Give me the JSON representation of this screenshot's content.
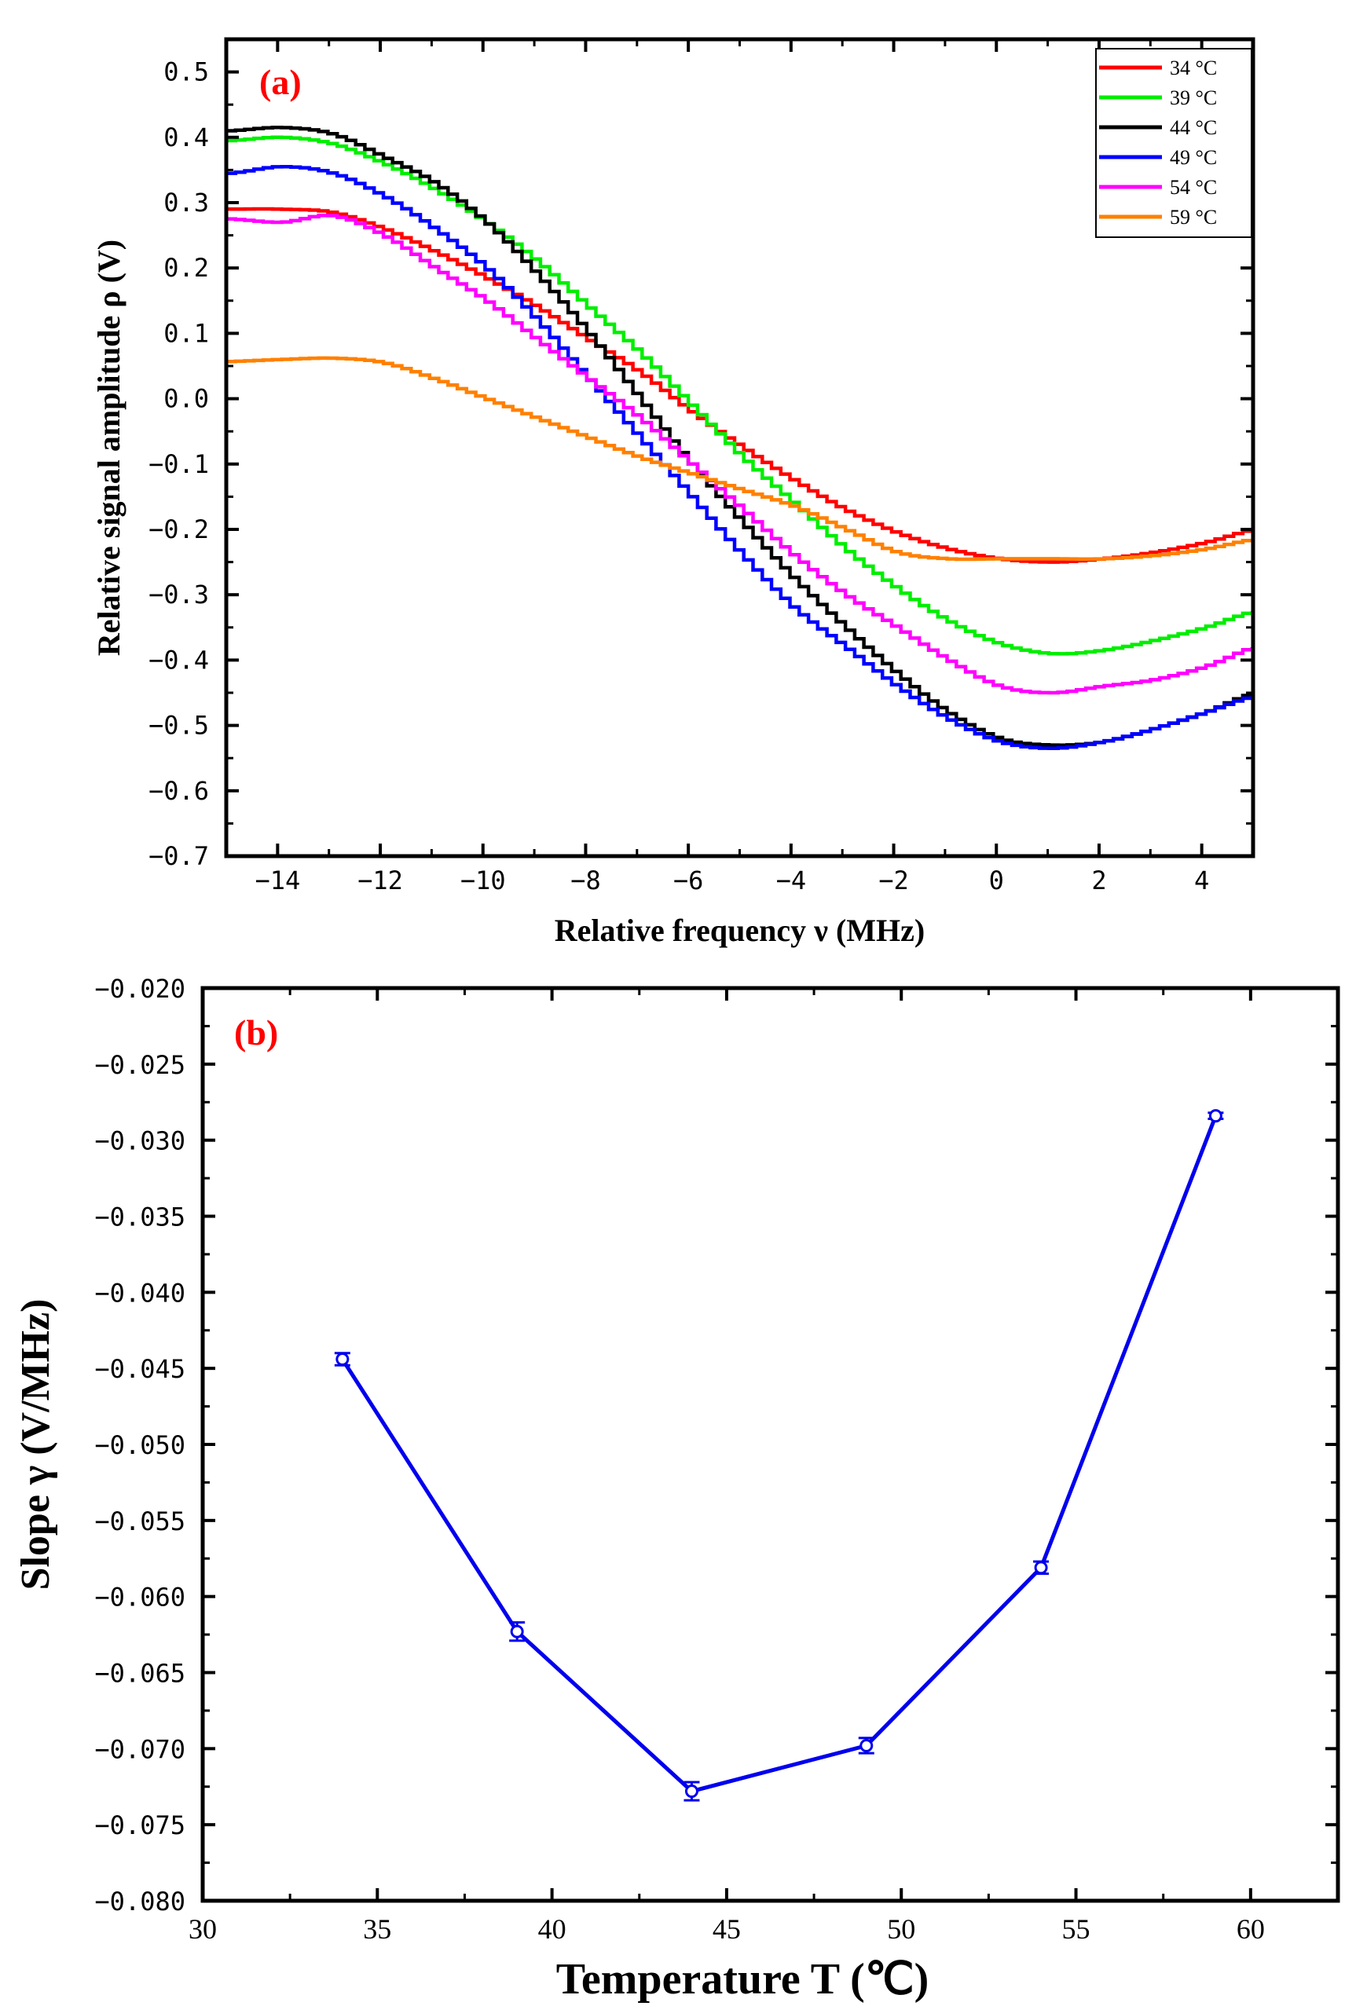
{
  "colors": {
    "panel_label": "#ff0000",
    "b_series": "#0000ee"
  },
  "chart_data": [
    {
      "type": "line",
      "panel_label": "(a)",
      "xlabel": "Relative frequency ν (MHz)",
      "ylabel": "Relative signal amplitude ρ (V)",
      "xlim": [
        -15,
        5
      ],
      "ylim": [
        -0.7,
        0.55
      ],
      "x_ticks": [
        -14,
        -12,
        -10,
        -8,
        -6,
        -4,
        -2,
        0,
        2,
        4
      ],
      "x_tick_labels": [
        "−14",
        "−12",
        "−10",
        "−8",
        "−6",
        "−4",
        "−2",
        "0",
        "2",
        "4"
      ],
      "y_ticks": [
        0.5,
        0.4,
        0.3,
        0.2,
        0.1,
        0.0,
        -0.1,
        -0.2,
        -0.3,
        -0.4,
        -0.5,
        -0.6,
        -0.7
      ],
      "y_tick_labels": [
        "0.5",
        "0.4",
        "0.3",
        "0.2",
        "0.1",
        "0.0",
        "−0.1",
        "−0.2",
        "−0.3",
        "−0.4",
        "−0.5",
        "−0.6",
        "−0.7"
      ],
      "grid": false,
      "legend": "top-right",
      "x": [
        -15,
        -14,
        -13,
        -12,
        -11,
        -10,
        -9,
        -8,
        -7,
        -6,
        -5,
        -4,
        -3,
        -2,
        -1,
        0,
        1,
        2,
        3,
        4,
        5
      ],
      "series": [
        {
          "name": "34 °C",
          "color": "#ff0000",
          "values": [
            0.29,
            0.29,
            0.285,
            0.26,
            0.225,
            0.185,
            0.14,
            0.09,
            0.04,
            -0.02,
            -0.075,
            -0.125,
            -0.17,
            -0.205,
            -0.23,
            -0.245,
            -0.25,
            -0.245,
            -0.235,
            -0.22,
            -0.2
          ]
        },
        {
          "name": "39 °C",
          "color": "#00ee00",
          "values": [
            0.395,
            0.4,
            0.39,
            0.36,
            0.32,
            0.27,
            0.21,
            0.14,
            0.07,
            -0.01,
            -0.09,
            -0.16,
            -0.23,
            -0.29,
            -0.34,
            -0.375,
            -0.39,
            -0.385,
            -0.37,
            -0.35,
            -0.325
          ]
        },
        {
          "name": "44 °C",
          "color": "#000000",
          "values": [
            0.41,
            0.415,
            0.405,
            0.37,
            0.33,
            0.27,
            0.19,
            0.1,
            0.0,
            -0.1,
            -0.19,
            -0.275,
            -0.35,
            -0.42,
            -0.48,
            -0.52,
            -0.53,
            -0.525,
            -0.505,
            -0.48,
            -0.45
          ]
        },
        {
          "name": "49 °C",
          "color": "#0000ff",
          "values": [
            0.345,
            0.355,
            0.345,
            0.31,
            0.26,
            0.2,
            0.12,
            0.03,
            -0.06,
            -0.15,
            -0.24,
            -0.32,
            -0.38,
            -0.44,
            -0.49,
            -0.525,
            -0.535,
            -0.525,
            -0.505,
            -0.48,
            -0.455
          ]
        },
        {
          "name": "54 °C",
          "color": "#ff00ff",
          "values": [
            0.275,
            0.27,
            0.28,
            0.25,
            0.2,
            0.15,
            0.09,
            0.03,
            -0.03,
            -0.1,
            -0.17,
            -0.24,
            -0.3,
            -0.35,
            -0.4,
            -0.44,
            -0.45,
            -0.44,
            -0.43,
            -0.41,
            -0.38
          ]
        },
        {
          "name": "59 °C",
          "color": "#ff8000",
          "values": [
            0.057,
            0.06,
            0.062,
            0.055,
            0.03,
            0.0,
            -0.03,
            -0.06,
            -0.09,
            -0.115,
            -0.14,
            -0.165,
            -0.2,
            -0.235,
            -0.245,
            -0.245,
            -0.245,
            -0.245,
            -0.24,
            -0.23,
            -0.215
          ]
        }
      ]
    },
    {
      "type": "line",
      "panel_label": "(b)",
      "xlabel": "Temperature T (℃)",
      "ylabel": "Slope γ (V/MHz)",
      "xlim": [
        30,
        62.5
      ],
      "ylim": [
        -0.08,
        -0.02
      ],
      "x_ticks": [
        30,
        35,
        40,
        45,
        50,
        55,
        60
      ],
      "x_tick_labels": [
        "30",
        "35",
        "40",
        "45",
        "50",
        "55",
        "60"
      ],
      "y_ticks": [
        -0.02,
        -0.025,
        -0.03,
        -0.035,
        -0.04,
        -0.045,
        -0.05,
        -0.055,
        -0.06,
        -0.065,
        -0.07,
        -0.075,
        -0.08
      ],
      "y_tick_labels": [
        "−0.020",
        "−0.025",
        "−0.030",
        "−0.035",
        "−0.040",
        "−0.045",
        "−0.050",
        "−0.055",
        "−0.060",
        "−0.065",
        "−0.070",
        "−0.075",
        "−0.080"
      ],
      "grid": false,
      "x": [
        34,
        39,
        44,
        49,
        54,
        59
      ],
      "values": [
        -0.0444,
        -0.0623,
        -0.0728,
        -0.0698,
        -0.0581,
        -0.0284
      ],
      "errors": [
        0.0004,
        0.0006,
        0.0006,
        0.0005,
        0.0004,
        0.0002
      ]
    }
  ]
}
